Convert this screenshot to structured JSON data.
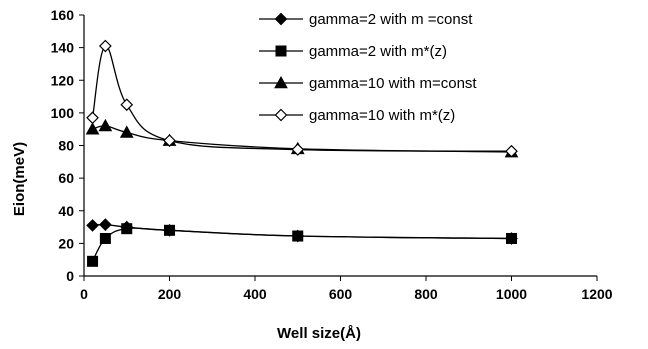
{
  "chart_data": {
    "type": "line",
    "title": "",
    "xlabel": "Well size(Å)",
    "ylabel": "Eion(meV)",
    "xlim": [
      0,
      1200
    ],
    "ylim": [
      0,
      160
    ],
    "xticks": [
      0,
      200,
      400,
      600,
      800,
      1000,
      1200
    ],
    "yticks": [
      0,
      20,
      40,
      60,
      80,
      100,
      120,
      140,
      160
    ],
    "grid": false,
    "legend_position": "top-right",
    "series": [
      {
        "name": "gamma=2 with m =const",
        "marker": "diamond-filled",
        "x": [
          20,
          50,
          100,
          200,
          500,
          1000
        ],
        "y": [
          31,
          31.5,
          30,
          28,
          24.5,
          23
        ]
      },
      {
        "name": "gamma=2 with m*(z)",
        "marker": "square-filled",
        "x": [
          20,
          50,
          100,
          200,
          500,
          1000
        ],
        "y": [
          9,
          23,
          29,
          28,
          24.5,
          23
        ]
      },
      {
        "name": "gamma=10 with m=const",
        "marker": "triangle-filled",
        "x": [
          20,
          50,
          100,
          200,
          500,
          1000
        ],
        "y": [
          90,
          92,
          88,
          83,
          78,
          76
        ]
      },
      {
        "name": "gamma=10 with m*(z)",
        "marker": "diamond-open",
        "x": [
          20,
          50,
          100,
          200,
          500,
          1000
        ],
        "y": [
          97,
          141,
          105,
          83,
          77.5,
          76.5
        ]
      }
    ]
  }
}
